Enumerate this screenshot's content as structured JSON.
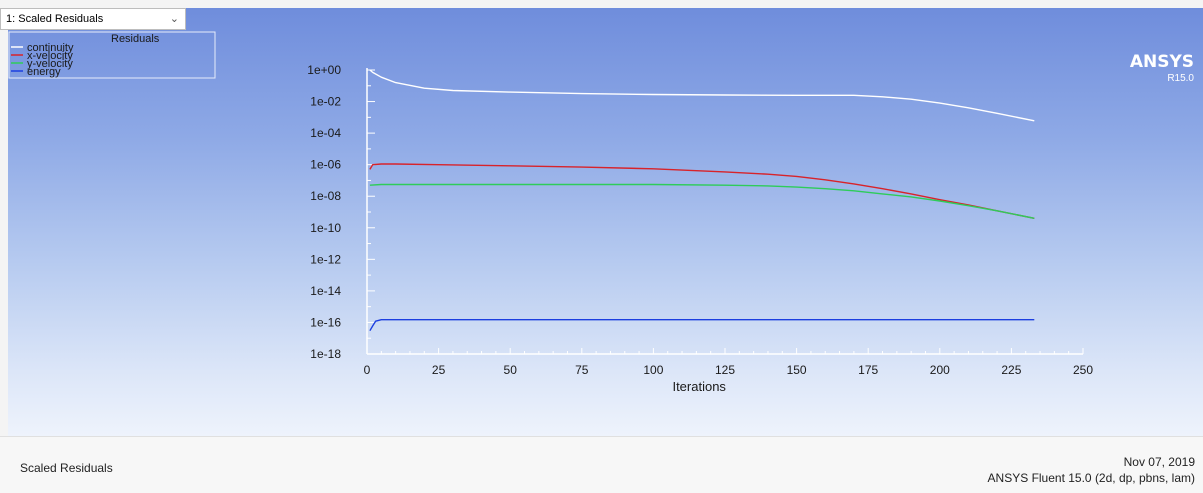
{
  "window": {
    "dropdown_value": "1: Scaled Residuals"
  },
  "brand": {
    "logo": "ANSYS",
    "release": "R15.0"
  },
  "footer": {
    "title": "Scaled Residuals",
    "date": "Nov 07, 2019",
    "version": "ANSYS Fluent 15.0 (2d, dp, pbns, lam)"
  },
  "colors": {
    "continuity": "#ffffff",
    "x-velocity": "#d8232a",
    "y-velocity": "#2ecc5a",
    "energy": "#1d3fe0"
  },
  "chart_data": {
    "type": "line",
    "title": "",
    "xlabel": "Iterations",
    "ylabel": "",
    "y_scale": "log",
    "xlim": [
      0,
      250
    ],
    "ylim": [
      1e-18,
      1
    ],
    "x_ticks": [
      0,
      25,
      50,
      75,
      100,
      125,
      150,
      175,
      200,
      225,
      250
    ],
    "y_ticks": [
      {
        "value": 1,
        "label": "1e+00"
      },
      {
        "value": 0.01,
        "label": "1e-02"
      },
      {
        "value": 0.0001,
        "label": "1e-04"
      },
      {
        "value": 1e-06,
        "label": "1e-06"
      },
      {
        "value": 1e-08,
        "label": "1e-08"
      },
      {
        "value": 1e-10,
        "label": "1e-10"
      },
      {
        "value": 1e-12,
        "label": "1e-12"
      },
      {
        "value": 1e-14,
        "label": "1e-14"
      },
      {
        "value": 1e-16,
        "label": "1e-16"
      },
      {
        "value": 1e-18,
        "label": "1e-18"
      }
    ],
    "legend": {
      "title": "Residuals",
      "position": "top-left"
    },
    "series": [
      {
        "name": "continuity",
        "x": [
          1,
          2,
          5,
          10,
          20,
          30,
          50,
          75,
          100,
          125,
          150,
          160,
          170,
          180,
          190,
          200,
          210,
          220,
          233
        ],
        "values": [
          1,
          0.7,
          0.35,
          0.16,
          0.07,
          0.05,
          0.04,
          0.032,
          0.028,
          0.026,
          0.025,
          0.025,
          0.025,
          0.02,
          0.014,
          0.008,
          0.004,
          0.0018,
          0.0006
        ]
      },
      {
        "name": "x-velocity",
        "x": [
          1,
          2,
          5,
          10,
          25,
          50,
          75,
          100,
          125,
          140,
          150,
          160,
          170,
          180,
          190,
          200,
          210,
          220,
          233
        ],
        "values": [
          5e-07,
          1e-06,
          1.1e-06,
          1.1e-06,
          1e-06,
          8.5e-07,
          7e-07,
          5.5e-07,
          3.5e-07,
          2.5e-07,
          1.8e-07,
          1.1e-07,
          6e-08,
          3e-08,
          1.4e-08,
          6e-09,
          2.8e-09,
          1.2e-09,
          4e-10
        ]
      },
      {
        "name": "y-velocity",
        "x": [
          1,
          5,
          10,
          25,
          50,
          75,
          100,
          125,
          140,
          150,
          160,
          170,
          180,
          190,
          200,
          210,
          220,
          233
        ],
        "values": [
          5e-08,
          5.5e-08,
          5.5e-08,
          5.5e-08,
          5.5e-08,
          5.5e-08,
          5.5e-08,
          5e-08,
          4.5e-08,
          3.8e-08,
          3e-08,
          2.2e-08,
          1.4e-08,
          9e-09,
          5e-09,
          2.5e-09,
          1.2e-09,
          4e-10
        ]
      },
      {
        "name": "energy",
        "x": [
          1,
          2,
          3,
          5,
          10,
          50,
          100,
          150,
          200,
          233
        ],
        "values": [
          3e-17,
          6e-17,
          1.2e-16,
          1.5e-16,
          1.5e-16,
          1.5e-16,
          1.5e-16,
          1.5e-16,
          1.5e-16,
          1.5e-16
        ]
      }
    ]
  }
}
